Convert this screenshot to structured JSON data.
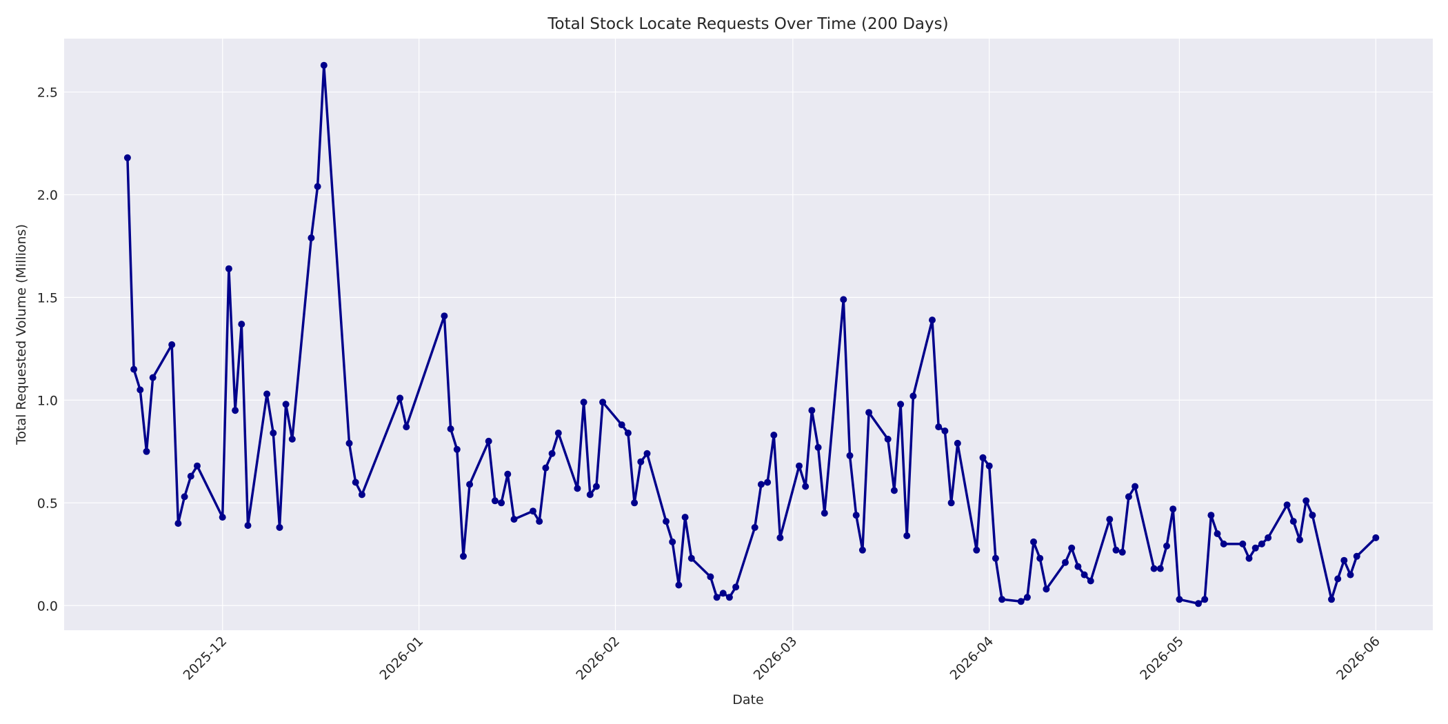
{
  "chart_data": {
    "type": "line",
    "title": "Total Stock Locate Requests Over Time (200 Days)",
    "xlabel": "Date",
    "ylabel": "Total Requested Volume (Millions)",
    "ylim": [
      -0.12,
      2.76
    ],
    "xlim": [
      "2025-11-06",
      "2026-06-10"
    ],
    "grid": true,
    "yticks": [
      0.0,
      0.5,
      1.0,
      1.5,
      2.0,
      2.5
    ],
    "ytick_labels": [
      "0.0",
      "0.5",
      "1.0",
      "1.5",
      "2.0",
      "2.5"
    ],
    "xticks": [
      "2025-12-01",
      "2026-01-01",
      "2026-02-01",
      "2026-03-01",
      "2026-04-01",
      "2026-05-01",
      "2026-06-01"
    ],
    "xtick_labels": [
      "2025-12",
      "2026-01",
      "2026-02",
      "2026-03",
      "2026-04",
      "2026-05",
      "2026-06"
    ],
    "colors": {
      "line": "#00008b",
      "plot_background": "#eaeaf2",
      "grid": "#ffffff"
    },
    "series": [
      {
        "x": [
          "2025-11-16",
          "2025-11-17",
          "2025-11-18",
          "2025-11-19",
          "2025-11-20",
          "2025-11-23",
          "2025-11-24",
          "2025-11-25",
          "2025-11-26",
          "2025-11-27",
          "2025-12-01",
          "2025-12-02",
          "2025-12-03",
          "2025-12-04",
          "2025-12-05",
          "2025-12-08",
          "2025-12-09",
          "2025-12-10",
          "2025-12-11",
          "2025-12-12",
          "2025-12-15",
          "2025-12-16",
          "2025-12-17",
          "2025-12-21",
          "2025-12-22",
          "2025-12-23",
          "2025-12-29",
          "2025-12-30",
          "2026-01-05",
          "2026-01-06",
          "2026-01-07",
          "2026-01-08",
          "2026-01-09",
          "2026-01-12",
          "2026-01-13",
          "2026-01-14",
          "2026-01-15",
          "2026-01-16",
          "2026-01-19",
          "2026-01-20",
          "2026-01-21",
          "2026-01-22",
          "2026-01-23",
          "2026-01-26",
          "2026-01-27",
          "2026-01-28",
          "2026-01-29",
          "2026-01-30",
          "2026-02-02",
          "2026-02-03",
          "2026-02-04",
          "2026-02-05",
          "2026-02-06",
          "2026-02-09",
          "2026-02-10",
          "2026-02-11",
          "2026-02-12",
          "2026-02-13",
          "2026-02-16",
          "2026-02-17",
          "2026-02-18",
          "2026-02-19",
          "2026-02-20",
          "2026-02-23",
          "2026-02-24",
          "2026-02-25",
          "2026-02-26",
          "2026-02-27",
          "2026-03-02",
          "2026-03-03",
          "2026-03-04",
          "2026-03-05",
          "2026-03-06",
          "2026-03-09",
          "2026-03-10",
          "2026-03-11",
          "2026-03-12",
          "2026-03-13",
          "2026-03-16",
          "2026-03-17",
          "2026-03-18",
          "2026-03-19",
          "2026-03-20",
          "2026-03-23",
          "2026-03-24",
          "2026-03-25",
          "2026-03-26",
          "2026-03-27",
          "2026-03-30",
          "2026-03-31",
          "2026-04-01",
          "2026-04-02",
          "2026-04-03",
          "2026-04-06",
          "2026-04-07",
          "2026-04-08",
          "2026-04-09",
          "2026-04-10",
          "2026-04-13",
          "2026-04-14",
          "2026-04-15",
          "2026-04-16",
          "2026-04-17",
          "2026-04-20",
          "2026-04-21",
          "2026-04-22",
          "2026-04-23",
          "2026-04-24",
          "2026-04-27",
          "2026-04-28",
          "2026-04-29",
          "2026-04-30",
          "2026-05-01",
          "2026-05-04",
          "2026-05-05",
          "2026-05-06",
          "2026-05-07",
          "2026-05-08",
          "2026-05-11",
          "2026-05-12",
          "2026-05-13",
          "2026-05-14",
          "2026-05-15",
          "2026-05-18",
          "2026-05-19",
          "2026-05-20",
          "2026-05-21",
          "2026-05-22",
          "2026-05-25",
          "2026-05-26",
          "2026-05-27",
          "2026-05-28",
          "2026-05-29",
          "2026-06-01"
        ],
        "y": [
          2.18,
          1.15,
          1.05,
          0.75,
          1.11,
          1.27,
          0.4,
          0.53,
          0.63,
          0.68,
          0.43,
          1.64,
          0.95,
          1.37,
          0.39,
          1.03,
          0.84,
          0.38,
          0.98,
          0.81,
          1.79,
          2.04,
          2.63,
          0.79,
          0.6,
          0.54,
          1.01,
          0.87,
          1.41,
          0.86,
          0.76,
          0.24,
          0.59,
          0.8,
          0.51,
          0.5,
          0.64,
          0.42,
          0.46,
          0.41,
          0.67,
          0.74,
          0.84,
          0.57,
          0.99,
          0.54,
          0.58,
          0.99,
          0.88,
          0.84,
          0.5,
          0.7,
          0.74,
          0.41,
          0.31,
          0.1,
          0.43,
          0.23,
          0.14,
          0.04,
          0.06,
          0.04,
          0.09,
          0.38,
          0.59,
          0.6,
          0.83,
          0.33,
          0.68,
          0.58,
          0.95,
          0.77,
          0.45,
          1.49,
          0.73,
          0.44,
          0.27,
          0.94,
          0.81,
          0.56,
          0.98,
          0.34,
          1.02,
          1.39,
          0.87,
          0.85,
          0.5,
          0.79,
          0.27,
          0.72,
          0.68,
          0.23,
          0.03,
          0.02,
          0.04,
          0.31,
          0.23,
          0.08,
          0.21,
          0.28,
          0.19,
          0.15,
          0.12,
          0.42,
          0.27,
          0.26,
          0.53,
          0.58,
          0.18,
          0.18,
          0.29,
          0.47,
          0.03,
          0.01,
          0.03,
          0.44,
          0.35,
          0.3,
          0.3,
          0.23,
          0.28,
          0.3,
          0.33,
          0.49,
          0.41,
          0.32,
          0.51,
          0.44,
          0.03,
          0.13,
          0.22,
          0.15,
          0.24,
          0.33
        ]
      }
    ]
  }
}
